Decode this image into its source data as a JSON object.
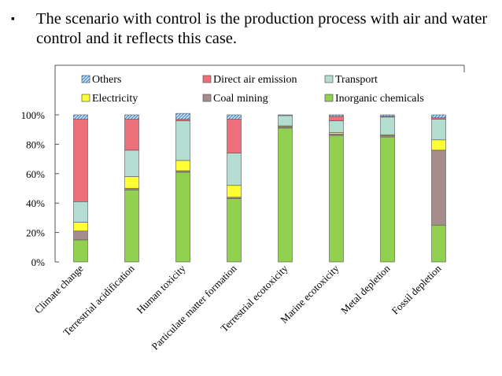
{
  "slide": {
    "bullet_glyph": "▪",
    "text": "The scenario with control is the production process with air and water control and it reflects this case."
  },
  "chart_data": {
    "type": "bar",
    "stacked": true,
    "title": "",
    "xlabel": "",
    "ylabel": "",
    "ylim": [
      0,
      100
    ],
    "y_ticks": [
      "0%",
      "20%",
      "40%",
      "60%",
      "80%",
      "100%"
    ],
    "legend_position": "top",
    "grid": false,
    "categories": [
      "Climate change",
      "Terrestrial acidification",
      "Human toxicity",
      "Particulate matter formation",
      "Terrestrial ecotoxicity",
      "Marine ecotoxicity",
      "Metal depletion",
      "Fossil depletion"
    ],
    "series": [
      {
        "name": "Inorganic chemicals",
        "color": "#92d050",
        "hatch": false,
        "values": [
          15,
          49,
          61,
          43,
          91,
          86,
          85,
          25
        ]
      },
      {
        "name": "Coal mining",
        "color": "#a68c8c",
        "hatch": false,
        "values": [
          6,
          1,
          1,
          1,
          1,
          1,
          1,
          51
        ]
      },
      {
        "name": "Electricity",
        "color": "#ffff33",
        "hatch": false,
        "values": [
          6,
          8,
          7,
          8,
          0.5,
          1,
          0.5,
          7
        ]
      },
      {
        "name": "Transport",
        "color": "#b3ddd0",
        "hatch": false,
        "values": [
          14,
          18,
          27,
          22,
          7,
          8,
          12,
          14
        ]
      },
      {
        "name": "Direct air emission",
        "color": "#ec6f7a",
        "hatch": false,
        "values": [
          56,
          21,
          1,
          23,
          0,
          3,
          0.5,
          1
        ]
      },
      {
        "name": "Others",
        "color": "#5b9bd5",
        "hatch": true,
        "values": [
          3,
          3,
          4,
          3,
          0.5,
          1,
          1,
          2
        ]
      }
    ],
    "legend_order": [
      "Others",
      "Direct air emission",
      "Transport",
      "Electricity",
      "Coal mining",
      "Inorganic chemicals"
    ]
  }
}
